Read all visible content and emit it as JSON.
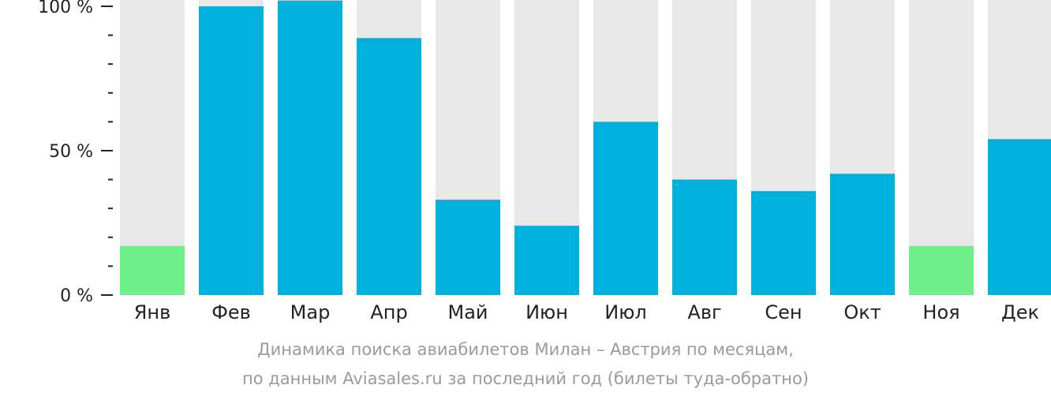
{
  "chart_data": {
    "type": "bar",
    "categories": [
      "Янв",
      "Фев",
      "Мар",
      "Апр",
      "Май",
      "Июн",
      "Июл",
      "Авг",
      "Сен",
      "Окт",
      "Ноя",
      "Дек"
    ],
    "values": [
      17,
      100,
      102,
      89,
      33,
      24,
      60,
      40,
      36,
      42,
      17,
      54
    ],
    "ylim": [
      0,
      100
    ],
    "yticks": [
      {
        "value": 0,
        "label": "0 %"
      },
      {
        "value": 50,
        "label": "50 %"
      },
      {
        "value": 100,
        "label": "100 %"
      }
    ],
    "minor_tick_step": 10,
    "highlight_min": true,
    "grid": false,
    "background_bars": true
  },
  "colors": {
    "bar": "#00b0dd",
    "bar_min": "#6ef08a",
    "bar_background": "#e8e8e8",
    "axis": "#222222",
    "caption": "#9a9a9a"
  },
  "caption": {
    "line1": "Динамика поиска авиабилетов Милан – Австрия по месяцам,",
    "line2": "по данным Aviasales.ru за последний год (билеты туда-обратно)"
  }
}
